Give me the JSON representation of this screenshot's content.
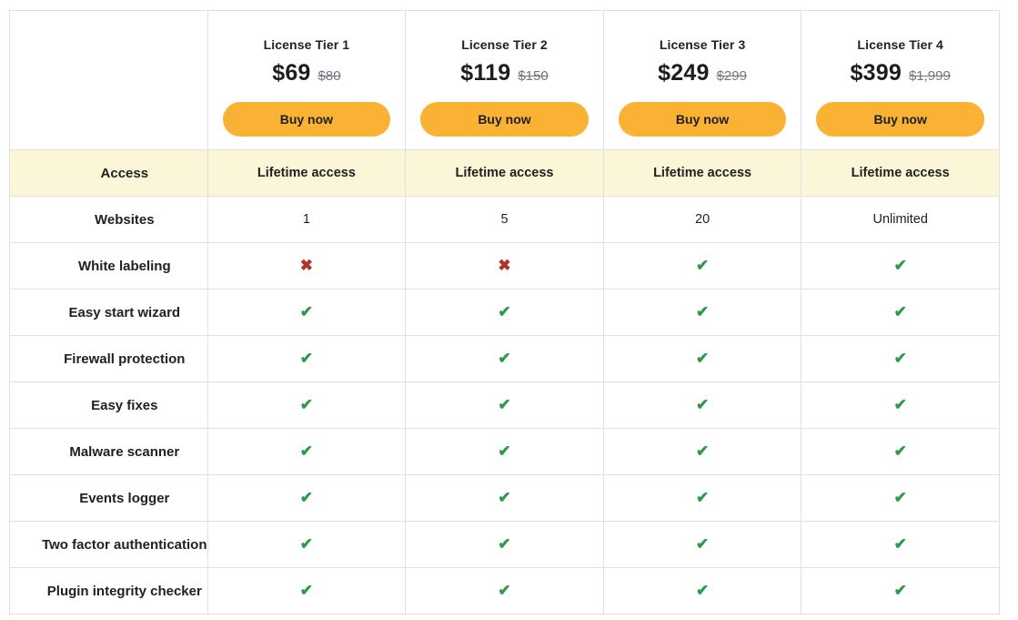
{
  "pricing_table": {
    "tiers": [
      {
        "name": "License Tier 1",
        "price": "$69",
        "old_price": "$80",
        "buy_label": "Buy now"
      },
      {
        "name": "License Tier 2",
        "price": "$119",
        "old_price": "$150",
        "buy_label": "Buy now"
      },
      {
        "name": "License Tier 3",
        "price": "$249",
        "old_price": "$299",
        "buy_label": "Buy now"
      },
      {
        "name": "License Tier 4",
        "price": "$399",
        "old_price": "$1,999",
        "buy_label": "Buy now"
      }
    ],
    "rows": [
      {
        "label": "Access",
        "type": "text",
        "highlight": true,
        "values": [
          "Lifetime access",
          "Lifetime access",
          "Lifetime access",
          "Lifetime access"
        ]
      },
      {
        "label": "Websites",
        "type": "text",
        "highlight": false,
        "values": [
          "1",
          "5",
          "20",
          "Unlimited"
        ]
      },
      {
        "label": "White labeling",
        "type": "mark",
        "values": [
          "cross",
          "cross",
          "check",
          "check"
        ]
      },
      {
        "label": "Easy start wizard",
        "type": "mark",
        "values": [
          "check",
          "check",
          "check",
          "check"
        ]
      },
      {
        "label": "Firewall protection",
        "type": "mark",
        "values": [
          "check",
          "check",
          "check",
          "check"
        ]
      },
      {
        "label": "Easy fixes",
        "type": "mark",
        "values": [
          "check",
          "check",
          "check",
          "check"
        ]
      },
      {
        "label": "Malware scanner",
        "type": "mark",
        "values": [
          "check",
          "check",
          "check",
          "check"
        ]
      },
      {
        "label": "Events logger",
        "type": "mark",
        "values": [
          "check",
          "check",
          "check",
          "check"
        ]
      },
      {
        "label": "Two factor authentication",
        "type": "mark",
        "values": [
          "check",
          "check",
          "check",
          "check"
        ]
      },
      {
        "label": "Plugin integrity checker",
        "type": "mark",
        "values": [
          "check",
          "check",
          "check",
          "check"
        ]
      }
    ],
    "icons": {
      "check": {
        "glyph": "✔",
        "color": "#2b9a4a"
      },
      "cross": {
        "glyph": "✖",
        "color": "#b1342b"
      }
    },
    "colors": {
      "buy_button": "#f9b233",
      "highlight_row_background": "#fbf6d7",
      "border": "#e0e0e0",
      "old_price_text": "#6f7680",
      "check_green": "#2b9a4a",
      "cross_red": "#b1342b",
      "text": "#212121"
    }
  }
}
